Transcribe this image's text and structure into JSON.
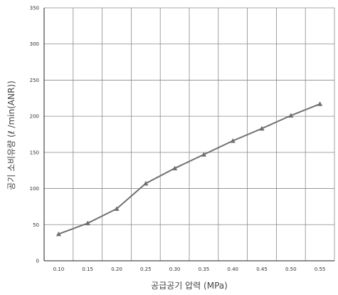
{
  "chart_data": {
    "type": "line",
    "title": "",
    "xlabel": "공급공기 압력 (MPa)",
    "ylabel": "공기 소비유량 (ℓ /min(ANR))",
    "x": [
      "0.10",
      "0.15",
      "0.20",
      "0.25",
      "0.30",
      "0.35",
      "0.40",
      "0.45",
      "0.50",
      "0.55"
    ],
    "series": [
      {
        "values": [
          37,
          52,
          72,
          107,
          128,
          147,
          166,
          183,
          201,
          217
        ],
        "marker": "triangle"
      }
    ],
    "ylim": [
      0,
      350
    ],
    "yticks": [
      "0",
      "50",
      "100",
      "150",
      "200",
      "250",
      "300",
      "350"
    ],
    "grid": true,
    "legend": "none",
    "colors": {
      "line": "#6f6f6f",
      "marker": "#6f6f6f",
      "grid": "#8a8a8a",
      "axis": "#222222"
    }
  }
}
